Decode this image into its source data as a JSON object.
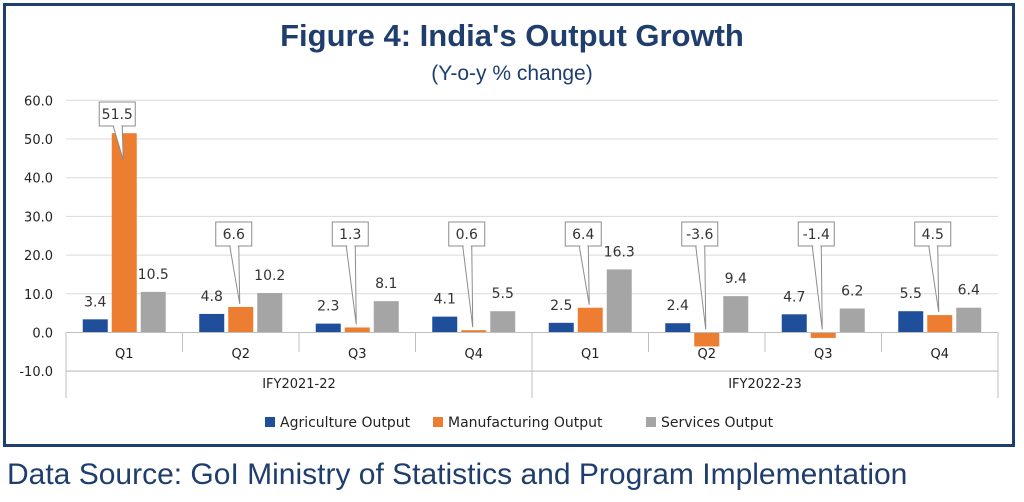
{
  "title": "Figure 4: India's Output Growth",
  "subtitle": "(Y-o-y % change)",
  "source": "Data Source: GoI Ministry of Statistics and Program Implementation",
  "colors": {
    "frame": "#1f3e6e",
    "agriculture": "#1f4e9a",
    "manufacturing": "#ed7d31",
    "services": "#a5a5a5",
    "grid": "#d9d9d9"
  },
  "chart_data": {
    "type": "bar",
    "title": "Figure 4: India's Output Growth",
    "subtitle": "(Y-o-y % change)",
    "categories": [
      "Q1",
      "Q2",
      "Q3",
      "Q4",
      "Q1",
      "Q2",
      "Q3",
      "Q4"
    ],
    "groups": [
      {
        "label": "IFY2021-22",
        "categories": [
          "Q1",
          "Q2",
          "Q3",
          "Q4"
        ]
      },
      {
        "label": "IFY2022-23",
        "categories": [
          "Q1",
          "Q2",
          "Q3",
          "Q4"
        ]
      }
    ],
    "series": [
      {
        "name": "Agriculture Output",
        "color": "#1f4e9a",
        "values": [
          3.4,
          4.8,
          2.3,
          4.1,
          2.5,
          2.4,
          4.7,
          5.5
        ]
      },
      {
        "name": "Manufacturing Output",
        "color": "#ed7d31",
        "values": [
          51.5,
          6.6,
          1.3,
          0.6,
          6.4,
          -3.6,
          -1.4,
          4.5
        ]
      },
      {
        "name": "Services Output",
        "color": "#a5a5a5",
        "values": [
          10.5,
          10.2,
          8.1,
          5.5,
          16.3,
          9.4,
          6.2,
          6.4
        ]
      }
    ],
    "y_ticks": [
      "60.0",
      "50.0",
      "40.0",
      "30.0",
      "20.0",
      "10.0",
      "0.0",
      "-10.0"
    ],
    "ylim": [
      -10,
      60
    ],
    "xlabel": "",
    "ylabel": "",
    "grid": true,
    "legend_position": "bottom"
  }
}
